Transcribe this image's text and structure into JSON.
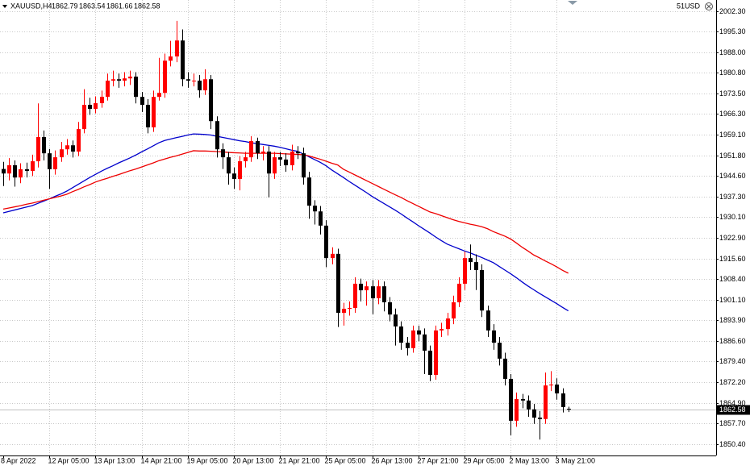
{
  "chart_data": {
    "type": "candlestick",
    "symbol": "XAUUSD,H4",
    "account_label": "51USD",
    "up_color": "#ff0000",
    "down_color": "#000000",
    "grid": true,
    "categories": [
      "8 Apr 2022",
      null,
      null,
      null,
      null,
      null,
      null,
      null,
      "12 Apr 05:00",
      null,
      null,
      null,
      null,
      null,
      null,
      null,
      "13 Apr 13:00",
      null,
      null,
      null,
      null,
      null,
      null,
      null,
      "14 Apr 21:00",
      null,
      null,
      null,
      null,
      null,
      null,
      null,
      "19 Apr 05:00",
      null,
      null,
      null,
      null,
      null,
      null,
      null,
      "20 Apr 13:00",
      null,
      null,
      null,
      null,
      null,
      null,
      null,
      "21 Apr 21:00",
      null,
      null,
      null,
      null,
      null,
      null,
      null,
      "25 Apr 05:00",
      null,
      null,
      null,
      null,
      null,
      null,
      null,
      "26 Apr 13:00",
      null,
      null,
      null,
      null,
      null,
      null,
      null,
      "27 Apr 21:00",
      null,
      null,
      null,
      null,
      null,
      null,
      null,
      "29 Apr 05:00",
      null,
      null,
      null,
      null,
      null,
      null,
      null,
      "2 May 13:00",
      null,
      null,
      null,
      null,
      null,
      null,
      null,
      "3 May 21:00",
      null,
      null
    ],
    "open": [
      1947.0,
      1945.4,
      1948.3,
      1944.0,
      1946.9,
      1946.3,
      1949.7,
      1958.2,
      1952.5,
      1946.9,
      1951.1,
      1953.9,
      1955.3,
      1953.1,
      1961.0,
      1969.5,
      1968.1,
      1970.1,
      1972.3,
      1978.0,
      1978.5,
      1978.0,
      1978.8,
      1979.4,
      1972.3,
      1969.5,
      1961.6,
      1972.3,
      1973.7,
      1985.0,
      1986.5,
      1992.1,
      1978.5,
      1978.0,
      1978.0,
      1974.6,
      1978.5,
      1963.8,
      1953.9,
      1951.1,
      1945.4,
      1943.5,
      1949.7,
      1951.1,
      1956.8,
      1952.5,
      1953.1,
      1945.4,
      1951.1,
      1950.3,
      1948.3,
      1953.1,
      1952.5,
      1944.0,
      1934.1,
      1932.1,
      1927.1,
      1915.7,
      1917.2,
      1896.5,
      1897.9,
      1898.2,
      1906.7,
      1904.4,
      1905.8,
      1901.6,
      1905.8,
      1900.2,
      1895.9,
      1891.7,
      1886.0,
      1884.1,
      1890.3,
      1888.9,
      1883.2,
      1874.7,
      1890.3,
      1890.8,
      1894.5,
      1900.2,
      1906.7,
      1915.7,
      1914.3,
      1911.5,
      1897.3,
      1890.3,
      1886.0,
      1880.4,
      1873.3,
      1858.6,
      1866.2,
      1865.7,
      1862.6,
      1859.7,
      1859.2,
      1871.0,
      1871.3,
      1868.2,
      1862.79
    ],
    "high": [
      1949.5,
      1950.8,
      1950.0,
      1949.0,
      1949.2,
      1952.0,
      1970.0,
      1960.5,
      1954.0,
      1953.5,
      1956.5,
      1957.5,
      1957.0,
      1963.5,
      1975.0,
      1972.0,
      1972.5,
      1974.5,
      1980.5,
      1981.5,
      1980.5,
      1981.0,
      1981.5,
      1981.0,
      1974.0,
      1971.5,
      1974.5,
      1986.0,
      1987.5,
      1992.0,
      1999.0,
      1996.0,
      1981.0,
      1980.5,
      1980.0,
      1982.0,
      1980.0,
      1965.5,
      1956.0,
      1953.0,
      1947.5,
      1951.5,
      1953.0,
      1958.5,
      1958.0,
      1955.0,
      1955.0,
      1953.0,
      1953.0,
      1952.5,
      1955.5,
      1955.0,
      1954.5,
      1946.0,
      1936.0,
      1934.0,
      1929.0,
      1919.5,
      1919.0,
      1900.0,
      1900.5,
      1909.0,
      1908.5,
      1907.5,
      1908.0,
      1908.0,
      1907.5,
      1902.0,
      1898.0,
      1893.5,
      1888.0,
      1892.0,
      1892.0,
      1891.0,
      1885.0,
      1892.0,
      1893.0,
      1896.5,
      1902.5,
      1909.0,
      1918.0,
      1920.5,
      1917.0,
      1913.5,
      1899.0,
      1892.5,
      1888.0,
      1882.5,
      1875.0,
      1868.5,
      1868.0,
      1867.5,
      1864.5,
      1862.0,
      1875.5,
      1876.0,
      1873.5,
      1870.0,
      1863.54
    ],
    "low": [
      1941.0,
      1943.0,
      1940.8,
      1942.0,
      1944.0,
      1944.5,
      1947.5,
      1950.0,
      1940.0,
      1945.0,
      1949.5,
      1952.0,
      1951.0,
      1951.5,
      1959.5,
      1966.0,
      1966.5,
      1968.5,
      1971.0,
      1976.0,
      1975.5,
      1976.0,
      1976.5,
      1970.0,
      1967.0,
      1959.5,
      1960.0,
      1971.0,
      1972.0,
      1983.0,
      1984.5,
      1976.0,
      1975.5,
      1976.0,
      1972.0,
      1973.0,
      1961.0,
      1951.0,
      1947.0,
      1941.5,
      1940.0,
      1939.5,
      1947.5,
      1949.5,
      1950.5,
      1950.0,
      1937.0,
      1943.5,
      1948.0,
      1946.0,
      1946.5,
      1950.5,
      1941.5,
      1929.5,
      1927.5,
      1924.0,
      1912.5,
      1913.5,
      1891.5,
      1892.0,
      1895.5,
      1896.5,
      1900.5,
      1899.0,
      1896.0,
      1899.5,
      1897.0,
      1893.5,
      1885.0,
      1883.5,
      1881.5,
      1882.5,
      1886.5,
      1875.0,
      1872.5,
      1873.0,
      1888.0,
      1888.5,
      1892.5,
      1898.5,
      1904.5,
      1911.5,
      1904.5,
      1895.0,
      1888.0,
      1883.5,
      1878.0,
      1871.0,
      1853.5,
      1856.5,
      1863.0,
      1860.0,
      1857.5,
      1852.0,
      1857.5,
      1869.0,
      1866.0,
      1861.5,
      1861.66
    ],
    "close": [
      1945.4,
      1948.3,
      1944.0,
      1946.9,
      1946.3,
      1949.7,
      1958.2,
      1952.5,
      1946.9,
      1951.1,
      1953.9,
      1955.3,
      1953.1,
      1961.0,
      1969.5,
      1968.1,
      1970.1,
      1972.3,
      1978.0,
      1978.5,
      1978.0,
      1978.8,
      1979.4,
      1972.3,
      1969.5,
      1961.6,
      1972.3,
      1973.7,
      1985.0,
      1986.5,
      1992.1,
      1978.5,
      1978.0,
      1978.0,
      1974.6,
      1978.5,
      1963.8,
      1953.9,
      1951.1,
      1945.4,
      1943.5,
      1949.7,
      1951.1,
      1956.8,
      1952.5,
      1953.1,
      1945.4,
      1951.1,
      1950.3,
      1948.3,
      1953.1,
      1952.5,
      1944.0,
      1934.1,
      1932.1,
      1927.1,
      1915.7,
      1917.2,
      1896.5,
      1897.9,
      1898.2,
      1906.7,
      1904.4,
      1905.8,
      1901.6,
      1905.8,
      1900.2,
      1895.9,
      1891.7,
      1886.0,
      1884.1,
      1890.3,
      1888.9,
      1883.2,
      1874.7,
      1890.3,
      1890.8,
      1894.5,
      1900.2,
      1906.7,
      1915.7,
      1914.3,
      1911.5,
      1897.3,
      1890.3,
      1886.0,
      1880.4,
      1873.3,
      1858.6,
      1866.2,
      1865.7,
      1862.6,
      1859.7,
      1859.2,
      1871.0,
      1871.3,
      1868.2,
      1863.4,
      1862.58
    ],
    "series": [
      {
        "color": "#0000cc",
        "values": [
          1931.6,
          1932.1,
          1932.6,
          1933.1,
          1933.6,
          1934.1,
          1934.9,
          1935.7,
          1936.5,
          1937.4,
          1938.2,
          1939.2,
          1940.4,
          1941.6,
          1942.8,
          1944.0,
          1945.1,
          1946.2,
          1947.2,
          1948.1,
          1949.1,
          1950.0,
          1950.9,
          1951.9,
          1953.0,
          1954.0,
          1955.1,
          1956.2,
          1957.0,
          1957.5,
          1958.0,
          1958.4,
          1958.9,
          1959.3,
          1959.2,
          1959.1,
          1958.9,
          1958.5,
          1958.1,
          1957.7,
          1957.3,
          1956.9,
          1956.6,
          1956.2,
          1955.9,
          1955.6,
          1955.3,
          1955.0,
          1954.6,
          1954.1,
          1953.6,
          1953.2,
          1952.3,
          1951.3,
          1950.3,
          1949.3,
          1948.1,
          1946.6,
          1945.3,
          1944.0,
          1942.6,
          1941.3,
          1940.0,
          1938.7,
          1937.3,
          1936.1,
          1934.9,
          1933.7,
          1932.5,
          1931.2,
          1929.8,
          1928.5,
          1927.1,
          1925.8,
          1924.5,
          1923.1,
          1921.8,
          1920.6,
          1919.8,
          1919.0,
          1918.2,
          1917.5,
          1916.7,
          1915.9,
          1915.0,
          1914.1,
          1912.8,
          1911.5,
          1910.2,
          1908.8,
          1907.3,
          1905.9,
          1904.6,
          1903.3,
          1902.1,
          1900.9,
          1899.7,
          1898.4,
          1897.2
        ]
      },
      {
        "color": "#ee0000",
        "values": [
          1932.9,
          1933.3,
          1933.7,
          1934.1,
          1934.6,
          1935.0,
          1935.5,
          1936.0,
          1936.5,
          1937.0,
          1937.5,
          1938.1,
          1939.0,
          1939.8,
          1940.7,
          1941.5,
          1942.4,
          1943.1,
          1943.7,
          1944.4,
          1945.0,
          1945.7,
          1946.4,
          1947.0,
          1947.7,
          1948.4,
          1949.1,
          1949.9,
          1950.5,
          1951.1,
          1951.6,
          1952.2,
          1952.8,
          1953.4,
          1953.3,
          1953.3,
          1953.2,
          1953.1,
          1953.0,
          1952.8,
          1952.7,
          1952.6,
          1952.5,
          1952.5,
          1952.5,
          1952.5,
          1952.5,
          1952.5,
          1952.4,
          1952.3,
          1952.2,
          1952.1,
          1952.0,
          1951.6,
          1951.0,
          1950.4,
          1949.7,
          1949.0,
          1948.4,
          1946.9,
          1945.9,
          1944.9,
          1943.9,
          1942.9,
          1941.9,
          1940.9,
          1939.9,
          1938.9,
          1937.9,
          1937.0,
          1935.9,
          1934.9,
          1933.9,
          1932.9,
          1931.9,
          1931.3,
          1930.6,
          1929.9,
          1929.2,
          1928.6,
          1928.1,
          1927.6,
          1927.2,
          1926.7,
          1926.0,
          1925.0,
          1924.2,
          1923.4,
          1922.4,
          1921.0,
          1919.5,
          1918.2,
          1916.8,
          1915.8,
          1914.7,
          1913.7,
          1912.6,
          1911.4,
          1910.4
        ]
      }
    ],
    "ylim": [
      1846.4,
      2004.9
    ],
    "yticks": [
      {
        "value": 2002.3,
        "label": "2002.30"
      },
      {
        "value": 1995.3,
        "label": "1995.30"
      },
      {
        "value": 1988,
        "label": "1988.00"
      },
      {
        "value": 1980.8,
        "label": "1980.80"
      },
      {
        "value": 1973.5,
        "label": "1973.50"
      },
      {
        "value": 1966.3,
        "label": "1966.30"
      },
      {
        "value": 1959.1,
        "label": "1959.10"
      },
      {
        "value": 1951.8,
        "label": "1951.80"
      },
      {
        "value": 1944.6,
        "label": "1944.60"
      },
      {
        "value": 1937.3,
        "label": "1937.30"
      },
      {
        "value": 1930.1,
        "label": "1930.10"
      },
      {
        "value": 1922.9,
        "label": "1922.90"
      },
      {
        "value": 1915.6,
        "label": "1915.60"
      },
      {
        "value": 1908.4,
        "label": "1908.40"
      },
      {
        "value": 1901.1,
        "label": "1901.10"
      },
      {
        "value": 1893.9,
        "label": "1893.90"
      },
      {
        "value": 1886.6,
        "label": "1886.60"
      },
      {
        "value": 1879.4,
        "label": "1879.40"
      },
      {
        "value": 1872.2,
        "label": "1872.20"
      },
      {
        "value": 1864.9,
        "label": "1864.90"
      },
      {
        "value": 1857.7,
        "label": "1857.70"
      },
      {
        "value": 1850.4,
        "label": "1850.40"
      }
    ]
  }
}
